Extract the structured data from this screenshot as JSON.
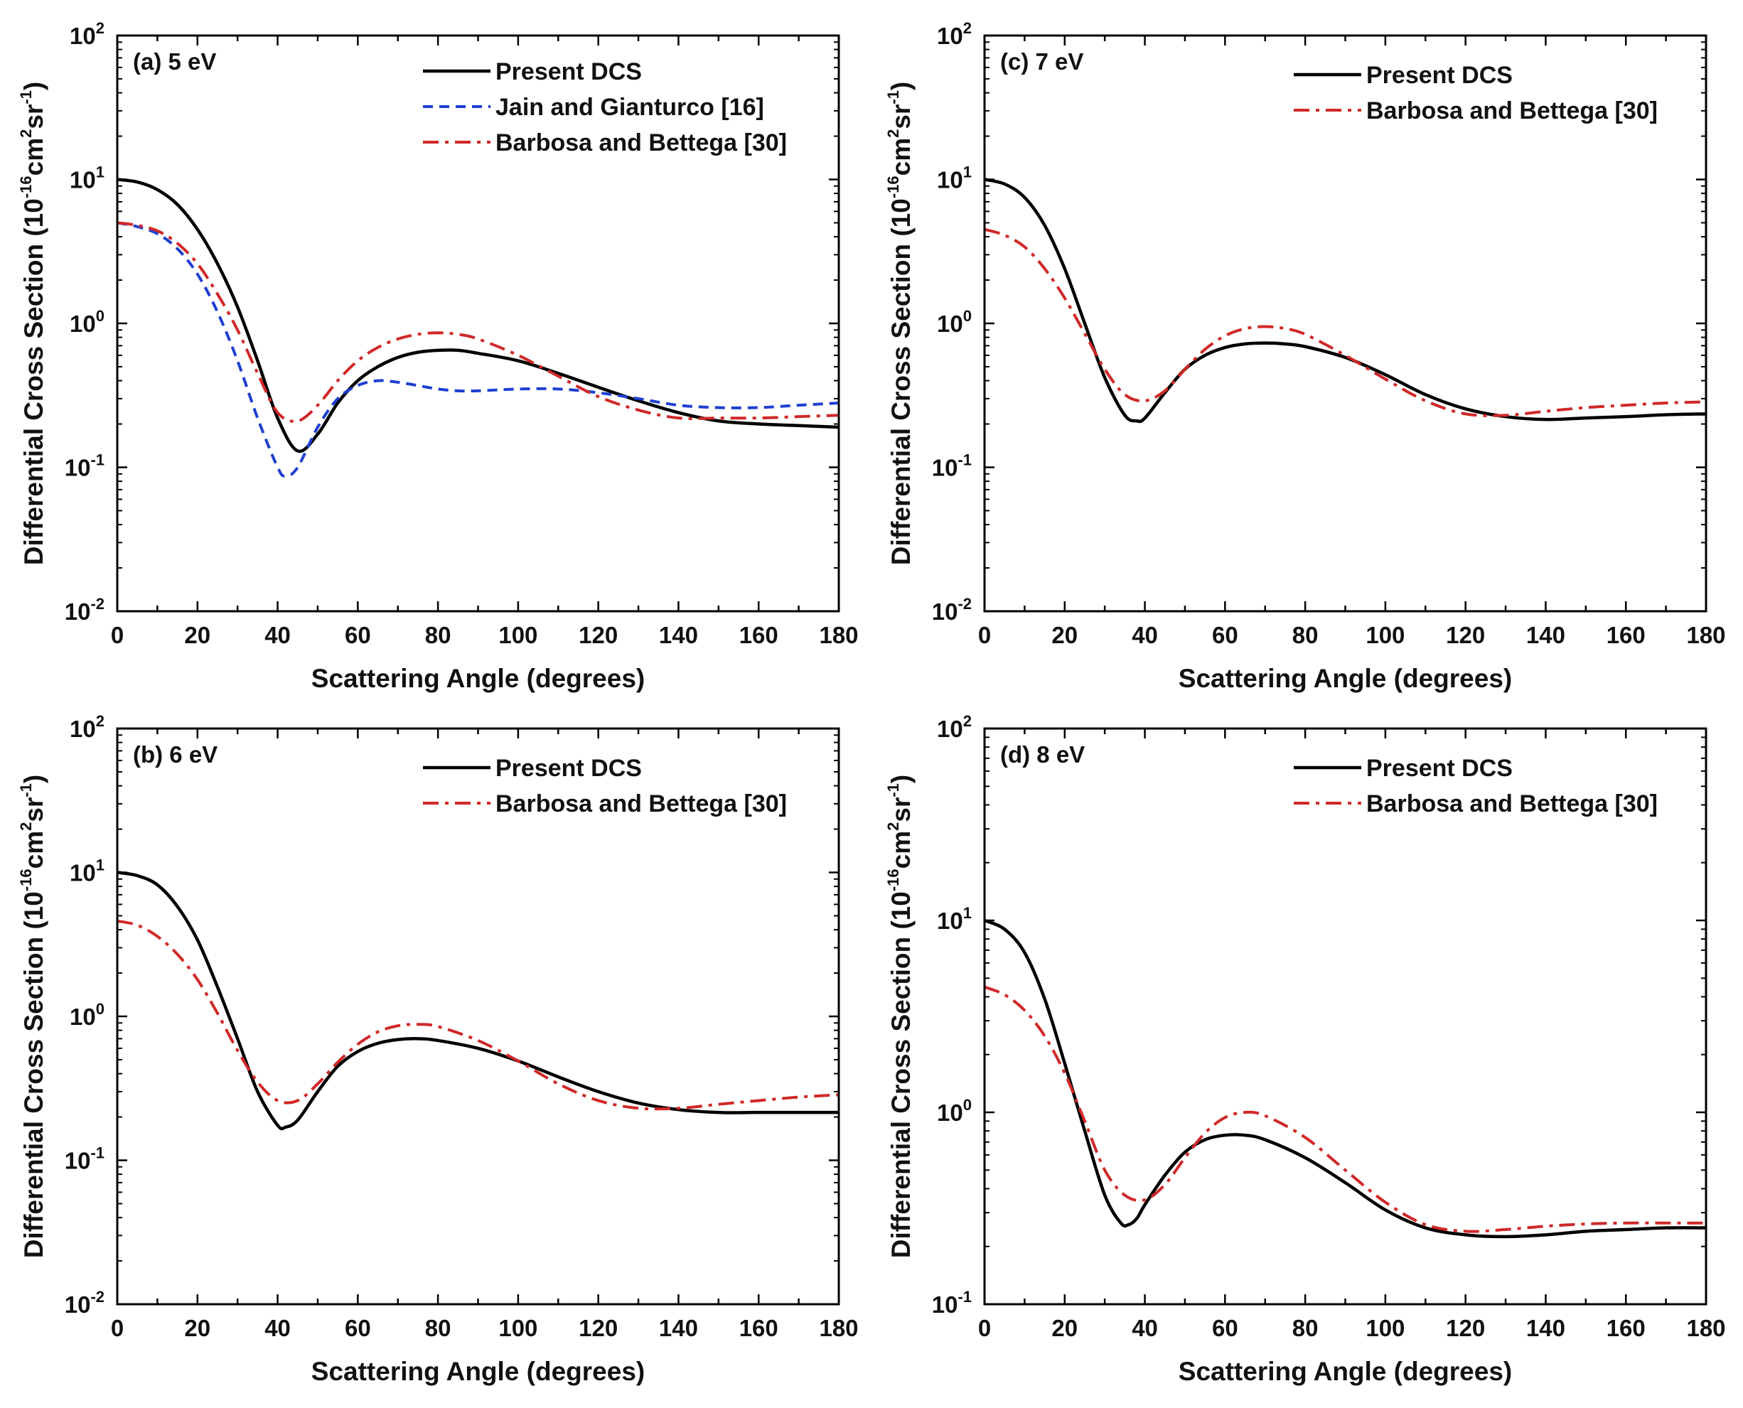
{
  "chart_data": [
    {
      "type": "line",
      "panel_label": "(a) 5 eV",
      "xlabel": "Scattering Angle (degrees)",
      "ylabel": {
        "base": "Differential Cross Section (10",
        "exp1": "-16",
        "mid": "cm",
        "exp2": "2",
        "mid2": "sr",
        "exp3": "-1",
        "end": ")"
      },
      "xlim": [
        0,
        180
      ],
      "x_ticks": [
        "0",
        "20",
        "40",
        "60",
        "80",
        "100",
        "120",
        "140",
        "160",
        "180"
      ],
      "ylim_log10": [
        -2,
        2
      ],
      "y_ticks": [
        {
          "base": "10",
          "exp": "-2",
          "value": 0.01
        },
        {
          "base": "10",
          "exp": "-1",
          "value": 0.1
        },
        {
          "base": "10",
          "exp": "0",
          "value": 1
        },
        {
          "base": "10",
          "exp": "1",
          "value": 10
        },
        {
          "base": "10",
          "exp": "2",
          "value": 100
        }
      ],
      "series": [
        {
          "name": "Present DCS",
          "color": "#000000",
          "style": "solid",
          "x": [
            0,
            5,
            10,
            15,
            20,
            25,
            30,
            35,
            40,
            45,
            50,
            55,
            60,
            65,
            70,
            75,
            80,
            85,
            90,
            100,
            110,
            120,
            130,
            140,
            150,
            160,
            170,
            180
          ],
          "y": [
            10,
            9.6,
            8.5,
            6.7,
            4.5,
            2.6,
            1.3,
            0.55,
            0.22,
            0.13,
            0.17,
            0.28,
            0.4,
            0.5,
            0.58,
            0.63,
            0.65,
            0.65,
            0.62,
            0.55,
            0.45,
            0.36,
            0.29,
            0.24,
            0.21,
            0.2,
            0.195,
            0.19
          ]
        },
        {
          "name": "Jain and Gianturco [16]",
          "color": "#1f3fd0",
          "style": "dashed",
          "x": [
            0,
            5,
            10,
            15,
            20,
            25,
            30,
            35,
            40,
            42,
            45,
            50,
            55,
            60,
            65,
            70,
            75,
            80,
            85,
            90,
            100,
            110,
            120,
            130,
            140,
            150,
            160,
            170,
            180
          ],
          "y": [
            5,
            4.7,
            4.2,
            3.3,
            2.2,
            1.2,
            0.55,
            0.22,
            0.1,
            0.087,
            0.1,
            0.19,
            0.3,
            0.37,
            0.4,
            0.39,
            0.37,
            0.35,
            0.34,
            0.34,
            0.35,
            0.35,
            0.33,
            0.3,
            0.27,
            0.26,
            0.26,
            0.27,
            0.28
          ]
        },
        {
          "name": "Barbosa and Bettega [30]",
          "color": "#d02828",
          "style": "dashdot",
          "x": [
            0,
            5,
            10,
            15,
            20,
            25,
            30,
            35,
            40,
            45,
            50,
            55,
            60,
            65,
            70,
            75,
            80,
            85,
            90,
            100,
            110,
            120,
            130,
            140,
            150,
            160,
            170,
            180
          ],
          "y": [
            5,
            4.8,
            4.4,
            3.6,
            2.6,
            1.6,
            0.9,
            0.45,
            0.24,
            0.21,
            0.27,
            0.4,
            0.55,
            0.68,
            0.78,
            0.84,
            0.86,
            0.84,
            0.78,
            0.6,
            0.43,
            0.31,
            0.25,
            0.22,
            0.22,
            0.22,
            0.225,
            0.23
          ]
        }
      ]
    },
    {
      "type": "line",
      "panel_label": "(c) 7 eV",
      "xlabel": "Scattering Angle (degrees)",
      "ylabel": {
        "base": "Differential Cross Section (10",
        "exp1": "-16",
        "mid": "cm",
        "exp2": "2",
        "mid2": "sr",
        "exp3": "-1",
        "end": ")"
      },
      "xlim": [
        0,
        180
      ],
      "x_ticks": [
        "0",
        "20",
        "40",
        "60",
        "80",
        "100",
        "120",
        "140",
        "160",
        "180"
      ],
      "ylim_log10": [
        -2,
        2
      ],
      "y_ticks": [
        {
          "base": "10",
          "exp": "-2",
          "value": 0.01
        },
        {
          "base": "10",
          "exp": "-1",
          "value": 0.1
        },
        {
          "base": "10",
          "exp": "0",
          "value": 1
        },
        {
          "base": "10",
          "exp": "1",
          "value": 10
        },
        {
          "base": "10",
          "exp": "2",
          "value": 100
        }
      ],
      "series": [
        {
          "name": "Present DCS",
          "color": "#000000",
          "style": "solid",
          "x": [
            0,
            5,
            10,
            15,
            20,
            25,
            30,
            35,
            38,
            40,
            45,
            50,
            55,
            60,
            65,
            70,
            75,
            80,
            90,
            100,
            110,
            120,
            130,
            140,
            150,
            160,
            170,
            180
          ],
          "y": [
            10,
            9.3,
            7.5,
            4.8,
            2.4,
            1.0,
            0.42,
            0.23,
            0.21,
            0.22,
            0.33,
            0.48,
            0.6,
            0.68,
            0.72,
            0.73,
            0.72,
            0.69,
            0.58,
            0.44,
            0.32,
            0.255,
            0.225,
            0.215,
            0.22,
            0.225,
            0.232,
            0.235
          ]
        },
        {
          "name": "Barbosa and Bettega [30]",
          "color": "#d02828",
          "style": "dashdot",
          "x": [
            0,
            5,
            10,
            15,
            20,
            25,
            30,
            35,
            40,
            45,
            50,
            55,
            60,
            65,
            70,
            75,
            80,
            90,
            100,
            110,
            120,
            130,
            140,
            150,
            160,
            170,
            180
          ],
          "y": [
            4.5,
            4.1,
            3.4,
            2.4,
            1.5,
            0.85,
            0.48,
            0.32,
            0.29,
            0.34,
            0.48,
            0.66,
            0.82,
            0.92,
            0.95,
            0.92,
            0.84,
            0.6,
            0.41,
            0.29,
            0.235,
            0.23,
            0.245,
            0.26,
            0.27,
            0.28,
            0.285
          ]
        }
      ]
    },
    {
      "type": "line",
      "panel_label": "(b) 6 eV",
      "xlabel": "Scattering Angle (degrees)",
      "ylabel": {
        "base": "Differential Cross Section (10",
        "exp1": "-16",
        "mid": "cm",
        "exp2": "2",
        "mid2": "sr",
        "exp3": "-1",
        "end": ")"
      },
      "xlim": [
        0,
        180
      ],
      "x_ticks": [
        "0",
        "20",
        "40",
        "60",
        "80",
        "100",
        "120",
        "140",
        "160",
        "180"
      ],
      "ylim_log10": [
        -2,
        2
      ],
      "y_ticks": [
        {
          "base": "10",
          "exp": "-2",
          "value": 0.01
        },
        {
          "base": "10",
          "exp": "-1",
          "value": 0.1
        },
        {
          "base": "10",
          "exp": "0",
          "value": 1
        },
        {
          "base": "10",
          "exp": "1",
          "value": 10
        },
        {
          "base": "10",
          "exp": "2",
          "value": 100
        }
      ],
      "series": [
        {
          "name": "Present DCS",
          "color": "#000000",
          "style": "solid",
          "x": [
            0,
            5,
            10,
            15,
            20,
            25,
            30,
            35,
            40,
            42,
            45,
            50,
            55,
            60,
            65,
            70,
            75,
            80,
            90,
            100,
            110,
            120,
            130,
            140,
            150,
            160,
            170,
            180
          ],
          "y": [
            10,
            9.5,
            8.2,
            5.8,
            3.4,
            1.6,
            0.7,
            0.3,
            0.175,
            0.17,
            0.19,
            0.3,
            0.45,
            0.57,
            0.65,
            0.69,
            0.7,
            0.68,
            0.6,
            0.49,
            0.38,
            0.3,
            0.25,
            0.225,
            0.215,
            0.215,
            0.215,
            0.215
          ]
        },
        {
          "name": "Barbosa and Bettega [30]",
          "color": "#d02828",
          "style": "dashdot",
          "x": [
            0,
            5,
            10,
            15,
            20,
            25,
            30,
            35,
            40,
            45,
            50,
            55,
            60,
            65,
            70,
            75,
            80,
            90,
            100,
            110,
            120,
            130,
            140,
            150,
            160,
            170,
            180
          ],
          "y": [
            4.6,
            4.3,
            3.6,
            2.7,
            1.8,
            1.05,
            0.58,
            0.35,
            0.26,
            0.26,
            0.34,
            0.48,
            0.64,
            0.78,
            0.86,
            0.88,
            0.85,
            0.68,
            0.49,
            0.34,
            0.26,
            0.23,
            0.23,
            0.245,
            0.26,
            0.275,
            0.285
          ]
        }
      ]
    },
    {
      "type": "line",
      "panel_label": "(d) 8 eV",
      "xlabel": "Scattering Angle (degrees)",
      "ylabel": {
        "base": "Differential Cross Section (10",
        "exp1": "-16",
        "mid": "cm",
        "exp2": "2",
        "mid2": "sr",
        "exp3": "-1",
        "end": ")"
      },
      "xlim": [
        0,
        180
      ],
      "x_ticks": [
        "0",
        "20",
        "40",
        "60",
        "80",
        "100",
        "120",
        "140",
        "160",
        "180"
      ],
      "ylim_log10": [
        -1,
        2
      ],
      "y_ticks": [
        {
          "base": "10",
          "exp": "-1",
          "value": 0.1
        },
        {
          "base": "10",
          "exp": "0",
          "value": 1
        },
        {
          "base": "10",
          "exp": "1",
          "value": 10
        },
        {
          "base": "10",
          "exp": "2",
          "value": 100
        }
      ],
      "series": [
        {
          "name": "Present DCS",
          "color": "#000000",
          "style": "solid",
          "x": [
            0,
            5,
            10,
            15,
            20,
            25,
            30,
            34,
            36,
            38,
            40,
            45,
            50,
            55,
            60,
            65,
            70,
            80,
            90,
            100,
            110,
            120,
            130,
            140,
            150,
            160,
            170,
            180
          ],
          "y": [
            10,
            9.0,
            6.8,
            3.9,
            1.8,
            0.8,
            0.37,
            0.265,
            0.26,
            0.28,
            0.33,
            0.47,
            0.62,
            0.72,
            0.76,
            0.76,
            0.72,
            0.58,
            0.43,
            0.31,
            0.25,
            0.23,
            0.225,
            0.23,
            0.24,
            0.245,
            0.25,
            0.25
          ]
        },
        {
          "name": "Barbosa and Bettega [30]",
          "color": "#d02828",
          "style": "dashdot",
          "x": [
            0,
            5,
            10,
            15,
            20,
            25,
            30,
            35,
            40,
            45,
            50,
            55,
            60,
            65,
            70,
            80,
            90,
            100,
            110,
            120,
            130,
            140,
            150,
            160,
            170,
            180
          ],
          "y": [
            4.5,
            4.1,
            3.4,
            2.5,
            1.6,
            0.9,
            0.5,
            0.37,
            0.35,
            0.42,
            0.58,
            0.78,
            0.94,
            1.0,
            0.96,
            0.74,
            0.5,
            0.34,
            0.26,
            0.24,
            0.245,
            0.255,
            0.262,
            0.265,
            0.265,
            0.265
          ]
        }
      ]
    }
  ]
}
